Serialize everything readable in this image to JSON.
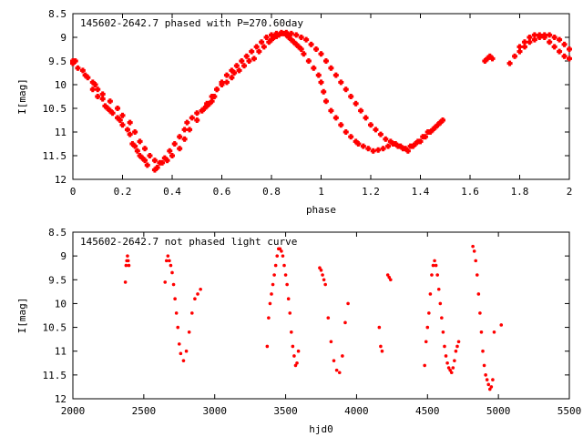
{
  "chart_data": [
    {
      "type": "scatter",
      "title": "145602-2642.7 phased with P=270.60day",
      "xlabel": "phase",
      "ylabel": "I[mag]",
      "xlim": [
        0,
        2
      ],
      "ylim": [
        12,
        8.5
      ],
      "y_inverted": true,
      "x_ticks": [
        "0",
        "0.2",
        "0.4",
        "0.6",
        "0.8",
        "1",
        "1.2",
        "1.4",
        "1.6",
        "1.8",
        "2"
      ],
      "y_ticks": [
        "8.5",
        "9",
        "9.5",
        "10",
        "10.5",
        "11",
        "11.5",
        "12"
      ],
      "marker": "cross",
      "color": "#ff0000",
      "series": [
        {
          "x": [
            0.0,
            0.01,
            0.04,
            0.06,
            0.08,
            0.09,
            0.1,
            0.12,
            0.13,
            0.14,
            0.15,
            0.16,
            0.18,
            0.19,
            0.2,
            0.22,
            0.23,
            0.24,
            0.25,
            0.26,
            0.27,
            0.28,
            0.29,
            0.3,
            0.33,
            0.34,
            0.35,
            0.37,
            0.39,
            0.41,
            0.43,
            0.45,
            0.46,
            0.48,
            0.5,
            0.52,
            0.53,
            0.54,
            0.55,
            0.56,
            0.57,
            0.58,
            0.6,
            0.62,
            0.64,
            0.65,
            0.67,
            0.69,
            0.71,
            0.73,
            0.75,
            0.77,
            0.79,
            0.8,
            0.81,
            0.82,
            0.83,
            0.84,
            0.85,
            0.86,
            0.87,
            0.88,
            0.89,
            0.9,
            0.91,
            0.92,
            0.93,
            0.95,
            0.97,
            0.99,
            1.0,
            1.01,
            1.02,
            1.04,
            1.06,
            1.08,
            1.1,
            1.12,
            1.14,
            1.15,
            1.17,
            1.19,
            1.21,
            1.23,
            1.25,
            1.27,
            1.29,
            1.31,
            1.33,
            1.35,
            1.37,
            1.39,
            1.41,
            1.43,
            1.45,
            1.47,
            1.48,
            1.49,
            1.66,
            1.67,
            1.68,
            1.69,
            1.76,
            1.8,
            1.82,
            1.84,
            1.86,
            1.88,
            1.9,
            1.92,
            1.94,
            1.96,
            1.98,
            2.0
          ],
          "y": [
            9.5,
            9.5,
            9.7,
            9.85,
            10.1,
            10.0,
            10.25,
            10.3,
            10.45,
            10.5,
            10.55,
            10.6,
            10.7,
            10.75,
            10.85,
            10.95,
            11.05,
            11.25,
            11.3,
            11.4,
            11.5,
            11.55,
            11.6,
            11.7,
            11.8,
            11.75,
            11.65,
            11.55,
            11.4,
            11.25,
            11.1,
            10.95,
            10.8,
            10.7,
            10.6,
            10.55,
            10.5,
            10.45,
            10.4,
            10.35,
            10.25,
            10.1,
            10.0,
            9.95,
            9.85,
            9.75,
            9.7,
            9.6,
            9.5,
            9.45,
            9.3,
            9.2,
            9.1,
            9.05,
            9.0,
            8.98,
            8.95,
            8.92,
            8.92,
            8.95,
            9.0,
            9.05,
            9.1,
            9.15,
            9.2,
            9.25,
            9.35,
            9.5,
            9.65,
            9.8,
            9.95,
            10.15,
            10.35,
            10.55,
            10.7,
            10.85,
            11.0,
            11.1,
            11.2,
            11.25,
            11.3,
            11.35,
            11.4,
            11.38,
            11.35,
            11.3,
            11.25,
            11.3,
            11.35,
            11.4,
            11.3,
            11.2,
            11.1,
            11.0,
            10.95,
            10.85,
            10.8,
            10.75,
            9.5,
            9.45,
            9.4,
            9.45,
            9.55,
            9.2,
            9.1,
            9.0,
            8.95,
            8.95,
            9.0,
            9.1,
            9.2,
            9.3,
            9.4,
            9.45
          ]
        },
        {
          "x": [
            0.0,
            0.02,
            0.05,
            0.08,
            0.1,
            0.12,
            0.15,
            0.18,
            0.2,
            0.23,
            0.25,
            0.27,
            0.29,
            0.31,
            0.33,
            0.36,
            0.38,
            0.4,
            0.43,
            0.45,
            0.47,
            0.5,
            0.52,
            0.54,
            0.56,
            0.58,
            0.6,
            0.62,
            0.64,
            0.66,
            0.68,
            0.7,
            0.72,
            0.74,
            0.76,
            0.78,
            0.8,
            0.82,
            0.84,
            0.86,
            0.88,
            0.9,
            0.92,
            0.94,
            0.96,
            0.98,
            1.0,
            1.02,
            1.04,
            1.06,
            1.08,
            1.1,
            1.12,
            1.14,
            1.16,
            1.18,
            1.2,
            1.22,
            1.24,
            1.26,
            1.28,
            1.3,
            1.32,
            1.34,
            1.36,
            1.38,
            1.4,
            1.42,
            1.44,
            1.46,
            1.48,
            1.78,
            1.8,
            1.82,
            1.84,
            1.86,
            1.88,
            1.9,
            1.92,
            1.94,
            1.96,
            1.98,
            2.0
          ],
          "y": [
            9.55,
            9.65,
            9.8,
            9.95,
            10.1,
            10.2,
            10.35,
            10.5,
            10.65,
            10.8,
            11.0,
            11.2,
            11.35,
            11.5,
            11.6,
            11.65,
            11.6,
            11.5,
            11.35,
            11.15,
            10.95,
            10.75,
            10.55,
            10.4,
            10.25,
            10.1,
            9.95,
            9.8,
            9.7,
            9.6,
            9.5,
            9.4,
            9.3,
            9.2,
            9.1,
            9.0,
            8.95,
            8.92,
            8.9,
            8.9,
            8.92,
            8.95,
            9.0,
            9.05,
            9.15,
            9.25,
            9.35,
            9.5,
            9.65,
            9.8,
            9.95,
            10.1,
            10.25,
            10.4,
            10.55,
            10.7,
            10.85,
            10.95,
            11.05,
            11.15,
            11.2,
            11.25,
            11.3,
            11.35,
            11.3,
            11.25,
            11.2,
            11.1,
            11.0,
            10.9,
            10.8,
            9.4,
            9.3,
            9.2,
            9.1,
            9.05,
            9.0,
            8.95,
            8.95,
            9.0,
            9.05,
            9.15,
            9.25
          ]
        }
      ]
    },
    {
      "type": "scatter",
      "title": "145602-2642.7 not phased light curve",
      "xlabel": "hjd0",
      "ylabel": "I[mag]",
      "xlim": [
        2000,
        5500
      ],
      "ylim": [
        12,
        8.5
      ],
      "y_inverted": true,
      "x_ticks": [
        "2000",
        "2500",
        "3000",
        "3500",
        "4000",
        "4500",
        "5000",
        "5500"
      ],
      "y_ticks": [
        "8.5",
        "9",
        "9.5",
        "10",
        "10.5",
        "11",
        "11.5",
        "12"
      ],
      "marker": "dot",
      "color": "#ff0000",
      "series": [
        {
          "x": [
            2370,
            2375,
            2380,
            2385,
            2390,
            2395,
            2650,
            2660,
            2670,
            2680,
            2690,
            2700,
            2710,
            2720,
            2730,
            2740,
            2750,
            2760,
            2780,
            2800,
            2820,
            2840,
            2860,
            2880,
            2900,
            3370,
            3380,
            3390,
            3400,
            3410,
            3420,
            3430,
            3440,
            3450,
            3460,
            3470,
            3480,
            3490,
            3500,
            3510,
            3520,
            3530,
            3540,
            3550,
            3560,
            3570,
            3580,
            3590,
            3740,
            3750,
            3760,
            3770,
            3780,
            3800,
            3820,
            3840,
            3860,
            3880,
            3900,
            3920,
            3940,
            4160,
            4170,
            4180,
            4220,
            4230,
            4240,
            4480,
            4490,
            4500,
            4510,
            4520,
            4530,
            4540,
            4550,
            4560,
            4570,
            4580,
            4590,
            4600,
            4610,
            4620,
            4630,
            4640,
            4650,
            4660,
            4670,
            4680,
            4690,
            4700,
            4710,
            4720,
            4820,
            4830,
            4840,
            4850,
            4860,
            4870,
            4880,
            4890,
            4900,
            4910,
            4920,
            4930,
            4940,
            4950,
            4960,
            4970,
            5020
          ],
          "y": [
            9.55,
            9.2,
            9.1,
            9.0,
            9.1,
            9.2,
            9.55,
            9.1,
            9.0,
            9.1,
            9.2,
            9.35,
            9.6,
            9.9,
            10.2,
            10.5,
            10.85,
            11.05,
            11.2,
            11.0,
            10.6,
            10.2,
            9.9,
            9.8,
            9.7,
            10.9,
            10.3,
            10.0,
            9.8,
            9.6,
            9.4,
            9.2,
            9.0,
            8.85,
            8.85,
            8.9,
            9.0,
            9.2,
            9.4,
            9.6,
            9.9,
            10.2,
            10.6,
            10.9,
            11.1,
            11.3,
            11.25,
            11.0,
            9.25,
            9.3,
            9.4,
            9.5,
            9.6,
            10.3,
            10.8,
            11.2,
            11.4,
            11.45,
            11.1,
            10.4,
            10.0,
            10.5,
            10.9,
            11.0,
            9.4,
            9.45,
            9.5,
            11.3,
            10.8,
            10.5,
            10.2,
            9.8,
            9.4,
            9.2,
            9.1,
            9.2,
            9.4,
            9.7,
            10.0,
            10.3,
            10.6,
            10.9,
            11.1,
            11.25,
            11.35,
            11.4,
            11.45,
            11.35,
            11.2,
            11.0,
            10.9,
            10.8,
            8.8,
            8.9,
            9.1,
            9.4,
            9.8,
            10.2,
            10.6,
            11.0,
            11.3,
            11.5,
            11.6,
            11.7,
            11.8,
            11.75,
            11.6,
            10.6,
            10.45
          ]
        }
      ]
    }
  ]
}
